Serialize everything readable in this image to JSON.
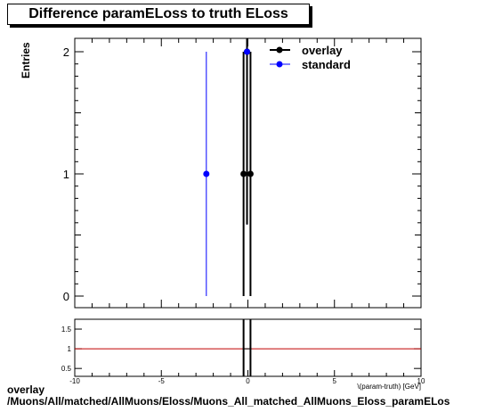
{
  "chart_data": [
    {
      "type": "scatter",
      "title": "Difference paramELoss to truth ELoss",
      "ylabel": "Entries",
      "xlim": [
        -10,
        10
      ],
      "ylim": [
        0,
        2.1
      ],
      "ytick_labels": [
        "0",
        "1",
        "2"
      ],
      "series": [
        {
          "name": "overlay",
          "color": "#000000",
          "points": [
            {
              "x": -0.25,
              "y": 1
            },
            {
              "x": -0.05,
              "y": 2
            },
            {
              "x": 0.15,
              "y": 1
            }
          ]
        },
        {
          "name": "standard",
          "color": "#0000ff",
          "points": [
            {
              "x": -2.4,
              "y": 1
            },
            {
              "x": -0.05,
              "y": 2
            }
          ]
        }
      ],
      "legend": "top-right"
    },
    {
      "type": "line",
      "xlim": [
        -10,
        10
      ],
      "ylim": [
        0.3,
        1.75
      ],
      "xtick_labels": [
        "-10",
        "-5",
        "0",
        "5",
        "10"
      ],
      "ytick_labels": [
        "0.5",
        "1",
        "1.5"
      ],
      "xlabel": "\\(param-truth) [GeV]",
      "reference_line": {
        "y": 1,
        "color": "#c00000"
      }
    }
  ],
  "caption": {
    "line1": "overlay",
    "line2": "/Muons/All/matched/AllMuons/Eloss/Muons_All_matched_AllMuons_Eloss_paramELos"
  }
}
